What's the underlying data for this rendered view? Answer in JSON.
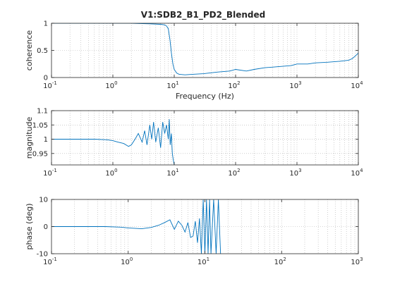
{
  "title": "V1:SDB2_B1_PD2_Blended",
  "colors": {
    "trace": "#0072BD",
    "axis": "#262626",
    "grid": "#b0b0b0",
    "background": "#ffffff"
  },
  "chart_data": [
    {
      "type": "line",
      "title": "V1:SDB2_B1_PD2_Blended",
      "xlabel": "Frequency (Hz)",
      "ylabel": "coherence",
      "xscale": "log",
      "xlim": [
        0.1,
        10000
      ],
      "ylim": [
        0,
        1
      ],
      "xticks": [
        0.1,
        1,
        10,
        100,
        1000,
        10000
      ],
      "xtick_labels": [
        [
          "10",
          "-1"
        ],
        [
          "10",
          "0"
        ],
        [
          "10",
          "1"
        ],
        [
          "10",
          "2"
        ],
        [
          "10",
          "3"
        ],
        [
          "10",
          "4"
        ]
      ],
      "yticks": [
        0,
        0.5,
        1
      ],
      "ytick_labels": [
        "0",
        "0.5",
        "1"
      ],
      "grid": true,
      "series": [
        {
          "x": [
            0.1,
            0.3,
            1,
            2,
            4,
            6,
            7,
            7.5,
            8,
            8.5,
            9,
            9.5,
            10,
            11,
            12,
            15,
            20,
            30,
            50,
            80,
            100,
            150,
            200,
            300,
            500,
            800,
            1000,
            1500,
            2000,
            3000,
            5000,
            7000,
            8000,
            9000,
            10000
          ],
          "y": [
            1,
            1,
            1,
            1,
            0.99,
            0.98,
            0.97,
            0.95,
            0.9,
            0.7,
            0.45,
            0.25,
            0.15,
            0.08,
            0.06,
            0.05,
            0.06,
            0.07,
            0.1,
            0.12,
            0.15,
            0.12,
            0.15,
            0.18,
            0.2,
            0.22,
            0.25,
            0.25,
            0.27,
            0.28,
            0.3,
            0.32,
            0.35,
            0.4,
            0.45
          ]
        }
      ]
    },
    {
      "type": "line",
      "ylabel": "magnitude",
      "xscale": "log",
      "xlim": [
        0.1,
        10000
      ],
      "ylim": [
        0.91,
        1.1
      ],
      "xticks": [
        0.1,
        1,
        10,
        100,
        1000,
        10000
      ],
      "xtick_labels": [
        [
          "10",
          "-1"
        ],
        [
          "10",
          "0"
        ],
        [
          "10",
          "1"
        ],
        [
          "10",
          "2"
        ],
        [
          "10",
          "3"
        ],
        [
          "10",
          "4"
        ]
      ],
      "yticks": [
        0.95,
        1,
        1.05,
        1.1
      ],
      "ytick_labels": [
        "0.95",
        "1",
        "1.05",
        "1.1"
      ],
      "grid": true,
      "series": [
        {
          "x": [
            0.1,
            0.5,
            0.8,
            1.0,
            1.2,
            1.5,
            1.8,
            2.0,
            2.3,
            2.6,
            3.0,
            3.3,
            3.6,
            4.0,
            4.3,
            4.6,
            5.0,
            5.5,
            6.0,
            6.5,
            7.0,
            7.5,
            8.0,
            8.3,
            8.6,
            9.0,
            9.3,
            9.6,
            10.0
          ],
          "y": [
            1.0,
            1.0,
            0.998,
            0.995,
            0.99,
            0.985,
            0.975,
            0.98,
            1.0,
            1.02,
            0.99,
            1.03,
            0.98,
            1.05,
            1.0,
            1.06,
            0.99,
            1.04,
            0.97,
            1.06,
            1.02,
            1.05,
            1.0,
            1.07,
            0.98,
            1.02,
            0.95,
            0.93,
            0.91
          ]
        }
      ]
    },
    {
      "type": "line",
      "ylabel": "phase (deg)",
      "xscale": "log",
      "xlim": [
        0.1,
        1000
      ],
      "ylim": [
        -10,
        10
      ],
      "xticks": [
        0.1,
        1,
        10,
        100,
        1000
      ],
      "xtick_labels": [
        [
          "10",
          "-1"
        ],
        [
          "10",
          "0"
        ],
        [
          "10",
          "1"
        ],
        [
          "10",
          "2"
        ],
        [
          "10",
          "3"
        ]
      ],
      "yticks": [
        -10,
        0,
        10
      ],
      "ytick_labels": [
        "-10",
        "0",
        "10"
      ],
      "grid": true,
      "series": [
        {
          "x": [
            0.1,
            0.3,
            0.5,
            0.8,
            1.0,
            1.5,
            2.0,
            2.5,
            3.0,
            3.5,
            4.0,
            4.5,
            5.0,
            5.5,
            6.0,
            6.5,
            7.0,
            7.5,
            8.0,
            8.5,
            9.0,
            9.5,
            10.0,
            10.5,
            11.0,
            11.5,
            12.0,
            13.0,
            14.0,
            15.0,
            16.0
          ],
          "y": [
            0,
            0,
            0,
            -0.2,
            -0.5,
            -0.8,
            -0.3,
            0.5,
            1.5,
            2.5,
            -1.0,
            2.0,
            0.5,
            -2.0,
            1.5,
            -4.0,
            -3.5,
            2.0,
            -6.0,
            3.0,
            -10,
            10,
            -10,
            10,
            -10,
            10,
            -10,
            10,
            -10,
            10,
            -10
          ]
        }
      ]
    }
  ]
}
